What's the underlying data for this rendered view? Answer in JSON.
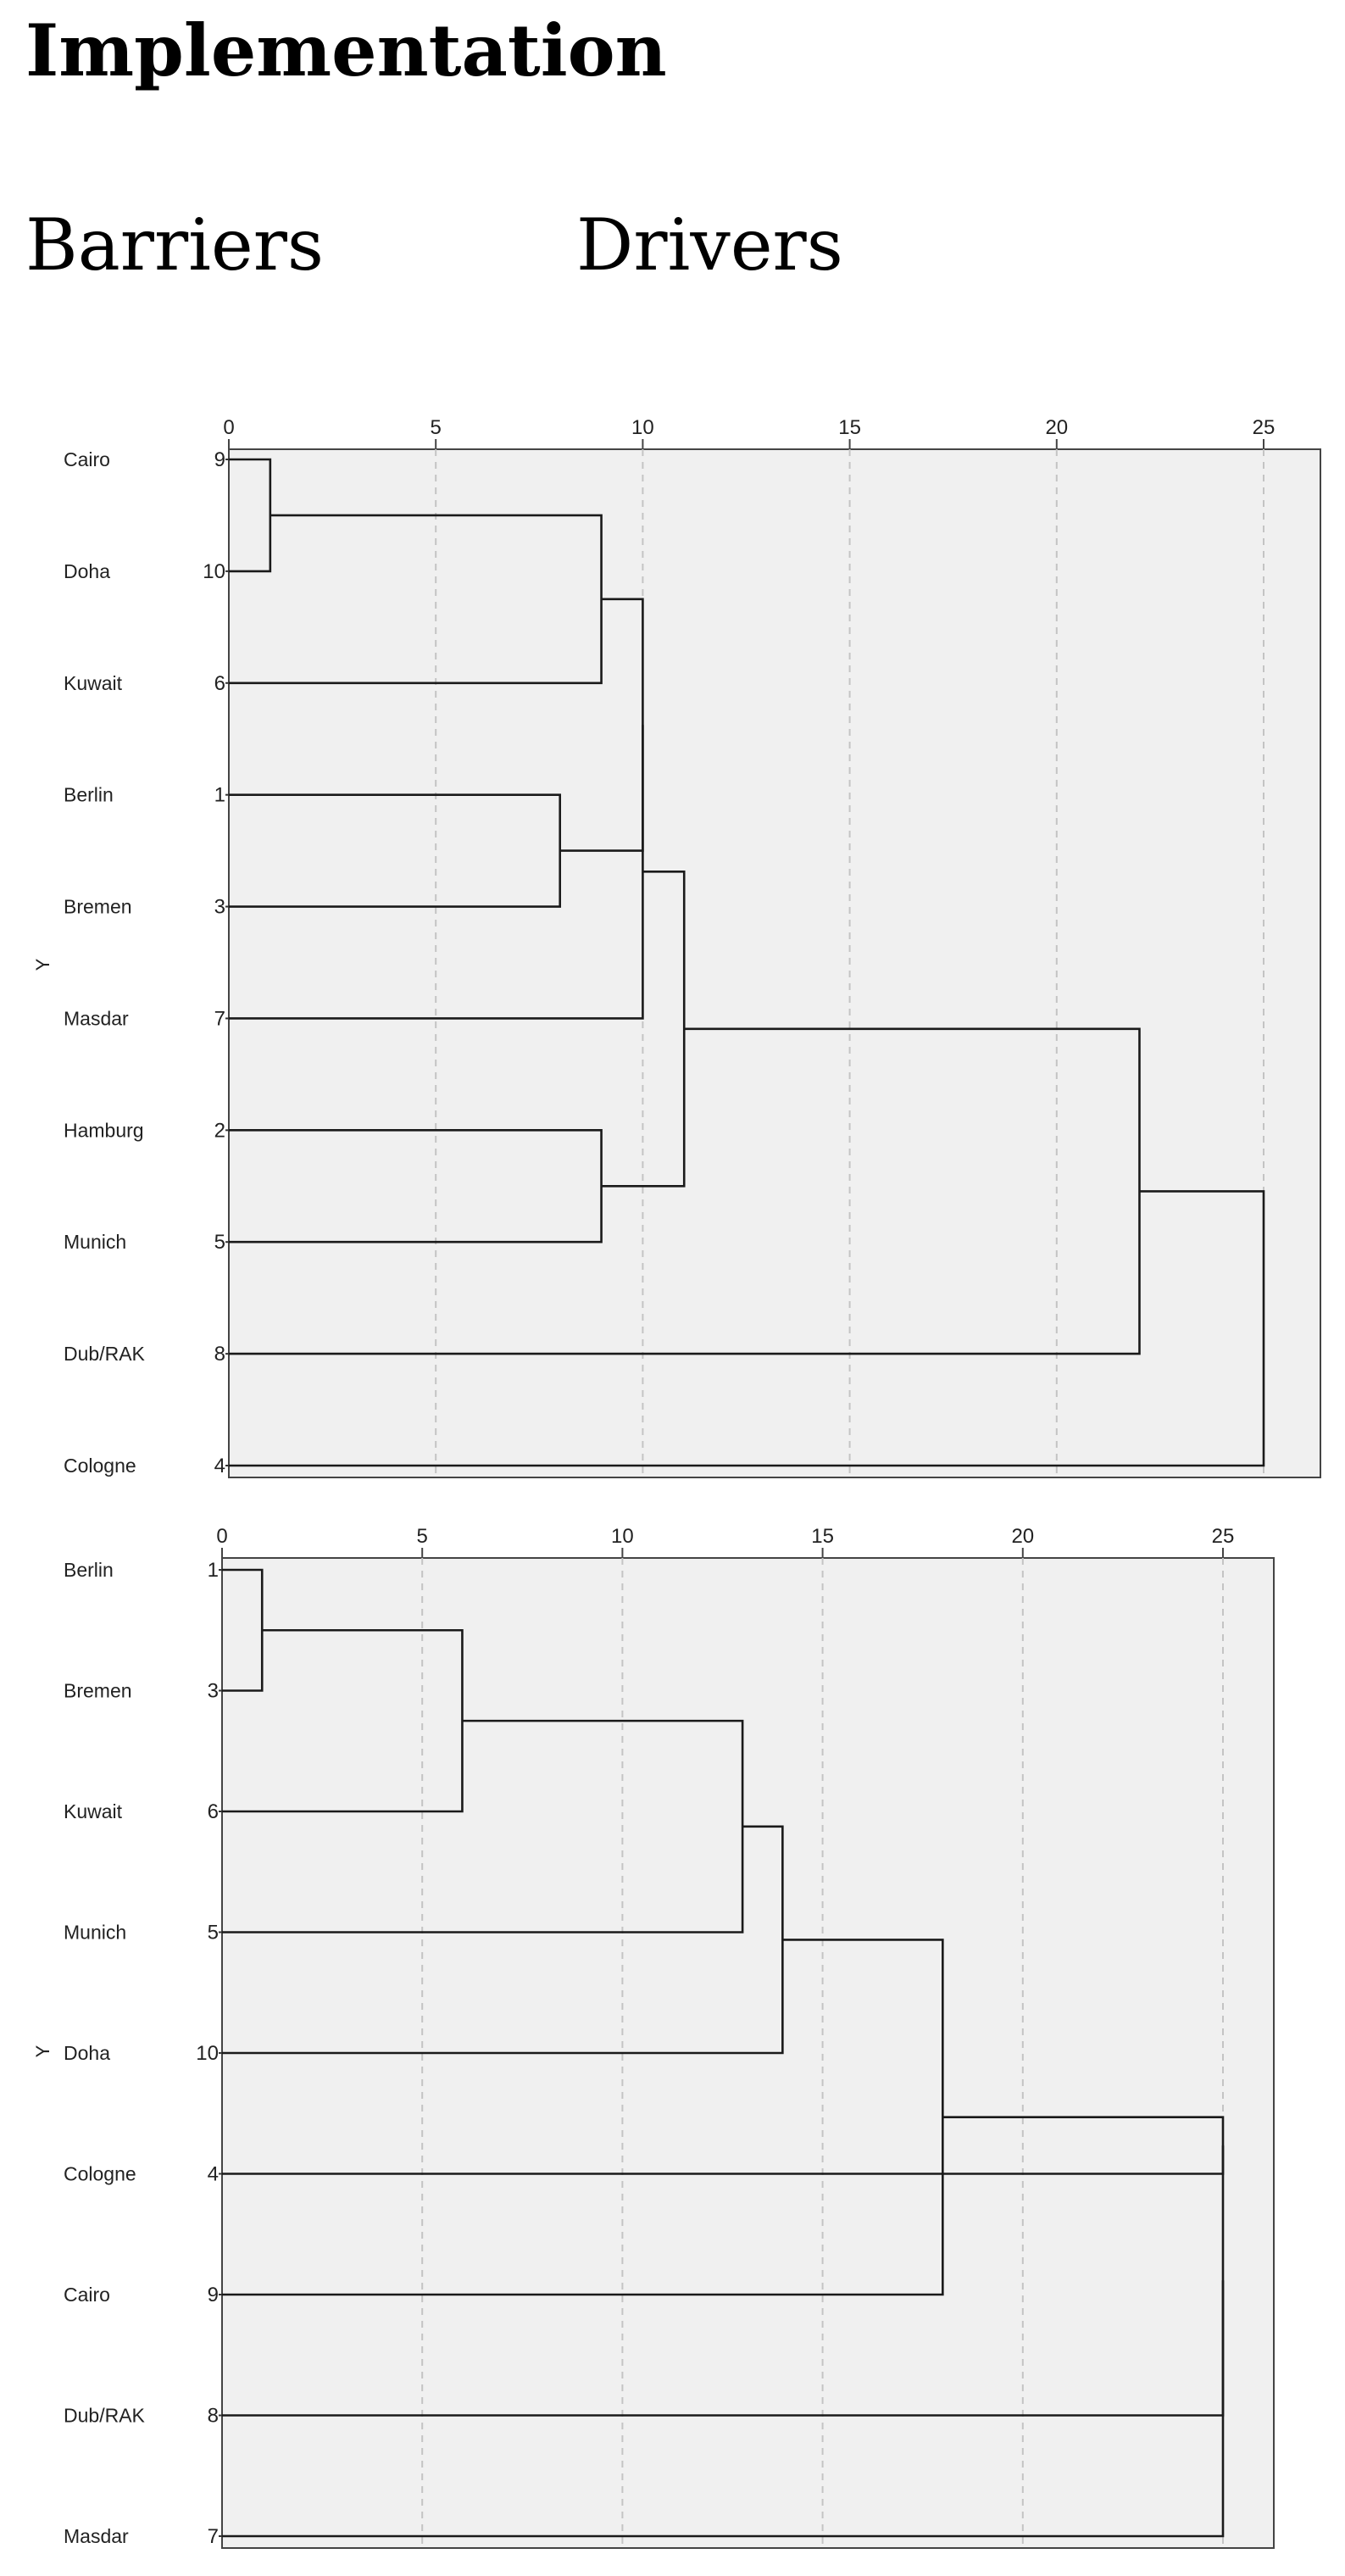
{
  "page": {
    "heading": "Implementation",
    "subtitle_left": "Barriers",
    "subtitle_right": "Drivers"
  },
  "chart_data": [
    {
      "type": "dendrogram",
      "title": "Barriers",
      "ylabel": "Y",
      "xlim": [
        0,
        25
      ],
      "xticks": [
        0,
        5,
        10,
        15,
        20,
        25
      ],
      "grid": true,
      "leaves": [
        {
          "label": "Cairo",
          "id": 9
        },
        {
          "label": "Doha",
          "id": 10
        },
        {
          "label": "Kuwait",
          "id": 6
        },
        {
          "label": "Berlin",
          "id": 1
        },
        {
          "label": "Bremen",
          "id": 3
        },
        {
          "label": "Masdar",
          "id": 7
        },
        {
          "label": "Hamburg",
          "id": 2
        },
        {
          "label": "Munich",
          "id": 5
        },
        {
          "label": "Dub/RAK",
          "id": 8
        },
        {
          "label": "Cologne",
          "id": 4
        }
      ],
      "merges": [
        {
          "a": "L0",
          "b": "L1",
          "height": 1.0
        },
        {
          "a": "M0",
          "b": "L2",
          "height": 9.0
        },
        {
          "a": "L3",
          "b": "L4",
          "height": 8.0
        },
        {
          "a": "M1",
          "b": "M2",
          "height": 10.0
        },
        {
          "a": "M3",
          "b": "L5",
          "height": 10.0
        },
        {
          "a": "L6",
          "b": "L7",
          "height": 9.0
        },
        {
          "a": "M4",
          "b": "M5",
          "height": 11.0
        },
        {
          "a": "M6",
          "b": "L8",
          "height": 22.0
        },
        {
          "a": "M7",
          "b": "L9",
          "height": 25.0
        }
      ]
    },
    {
      "type": "dendrogram",
      "title": "Drivers",
      "ylabel": "Y",
      "xlim": [
        0,
        25
      ],
      "xticks": [
        0,
        5,
        10,
        15,
        20,
        25
      ],
      "grid": true,
      "leaves": [
        {
          "label": "Berlin",
          "id": 1
        },
        {
          "label": "Bremen",
          "id": 3
        },
        {
          "label": "Kuwait",
          "id": 6
        },
        {
          "label": "Munich",
          "id": 5
        },
        {
          "label": "Doha",
          "id": 10
        },
        {
          "label": "Cologne",
          "id": 4
        },
        {
          "label": "Cairo",
          "id": 9
        },
        {
          "label": "Dub/RAK",
          "id": 8
        },
        {
          "label": "Masdar",
          "id": 7
        }
      ],
      "merges": [
        {
          "a": "L0",
          "b": "L1",
          "height": 1.0
        },
        {
          "a": "M0",
          "b": "L2",
          "height": 6.0
        },
        {
          "a": "M1",
          "b": "L3",
          "height": 13.0
        },
        {
          "a": "M2",
          "b": "L4",
          "height": 14.0
        },
        {
          "a": "M3",
          "b": "L6",
          "height": 18.0
        },
        {
          "a": "L5",
          "b": "M4",
          "height": 25.0
        },
        {
          "a": "M5",
          "b": "L7",
          "height": 25.0
        },
        {
          "a": "M6",
          "b": "L8",
          "height": 25.0
        }
      ]
    }
  ]
}
